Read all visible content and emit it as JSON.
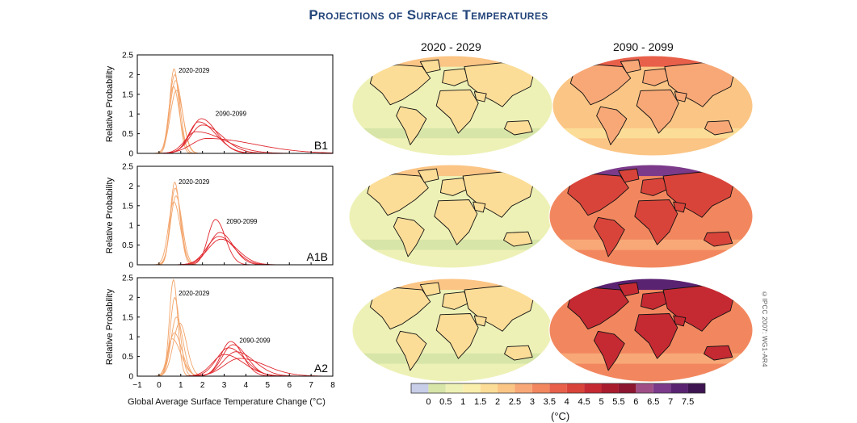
{
  "title": "Projections of Surface Temperatures",
  "col_headers": [
    "2020 - 2029",
    "2090 - 2099"
  ],
  "credit": "©IPCC 2007: WG1-AR4",
  "colorbar": {
    "unit": "(°C)",
    "ticks": [
      "0",
      "0.5",
      "1",
      "1.5",
      "2",
      "2.5",
      "3",
      "3.5",
      "4",
      "4.5",
      "5",
      "5.5",
      "6",
      "6.5",
      "7",
      "7.5"
    ],
    "colors": [
      "#c8cde8",
      "#d7e5a8",
      "#eef1b6",
      "#f9eeac",
      "#fcdd97",
      "#fbc585",
      "#f8a877",
      "#f2875f",
      "#e8604a",
      "#d9443a",
      "#c52a32",
      "#a91c2e",
      "#8c1530",
      "#a04f86",
      "#7c3a8a",
      "#5a2372",
      "#3e1450"
    ]
  },
  "chart_data": [
    {
      "type": "line",
      "scenario_label": "B1",
      "ylabel": "Relative Probability",
      "yticks": [
        "0",
        "0.5",
        "1",
        "1.5",
        "2",
        "2.5"
      ],
      "ylim": [
        0,
        2.5
      ],
      "xlim": [
        -1,
        8
      ],
      "period_labels": [
        {
          "text": "2020-2029",
          "x": 0.9,
          "y": 2.05
        },
        {
          "text": "2090-2099",
          "x": 2.6,
          "y": 0.95
        }
      ],
      "series": [
        {
          "group": "2020-2029",
          "peak": 0.69,
          "height": 2.15,
          "sl": 0.2,
          "sr": 0.22
        },
        {
          "group": "2020-2029",
          "peak": 0.72,
          "height": 2.0,
          "sl": 0.24,
          "sr": 0.25
        },
        {
          "group": "2020-2029",
          "peak": 0.76,
          "height": 1.85,
          "sl": 0.26,
          "sr": 0.3
        },
        {
          "group": "2020-2029",
          "peak": 0.66,
          "height": 1.7,
          "sl": 0.22,
          "sr": 0.28
        },
        {
          "group": "2020-2029",
          "peak": 0.8,
          "height": 1.6,
          "sl": 0.28,
          "sr": 0.3
        },
        {
          "group": "2090-2099",
          "peak": 1.95,
          "height": 0.88,
          "sl": 0.5,
          "sr": 0.7
        },
        {
          "group": "2090-2099",
          "peak": 1.82,
          "height": 0.8,
          "sl": 0.45,
          "sr": 0.8
        },
        {
          "group": "2090-2099",
          "peak": 2.0,
          "height": 0.72,
          "sl": 0.55,
          "sr": 0.9
        },
        {
          "group": "2090-2099",
          "peak": 1.7,
          "height": 0.55,
          "sl": 0.5,
          "sr": 1.3
        },
        {
          "group": "2090-2099",
          "peak": 2.2,
          "height": 0.38,
          "sl": 0.7,
          "sr": 2.2
        }
      ]
    },
    {
      "type": "line",
      "scenario_label": "A1B",
      "ylabel": "Relative Probability",
      "yticks": [
        "0",
        "0.5",
        "1",
        "1.5",
        "2",
        "2.5"
      ],
      "ylim": [
        0,
        2.5
      ],
      "xlim": [
        -1,
        8
      ],
      "period_labels": [
        {
          "text": "2020-2029",
          "x": 0.9,
          "y": 2.05
        },
        {
          "text": "2090-2099",
          "x": 3.1,
          "y": 1.05
        }
      ],
      "series": [
        {
          "group": "2020-2029",
          "peak": 0.72,
          "height": 2.1,
          "sl": 0.2,
          "sr": 0.24
        },
        {
          "group": "2020-2029",
          "peak": 0.74,
          "height": 1.95,
          "sl": 0.22,
          "sr": 0.26
        },
        {
          "group": "2020-2029",
          "peak": 0.68,
          "height": 1.6,
          "sl": 0.25,
          "sr": 0.3
        },
        {
          "group": "2020-2029",
          "peak": 0.78,
          "height": 1.75,
          "sl": 0.25,
          "sr": 0.28
        },
        {
          "group": "2090-2099",
          "peak": 2.6,
          "height": 1.15,
          "sl": 0.35,
          "sr": 0.45
        },
        {
          "group": "2090-2099",
          "peak": 2.8,
          "height": 0.82,
          "sl": 0.5,
          "sr": 0.6
        },
        {
          "group": "2090-2099",
          "peak": 2.75,
          "height": 0.72,
          "sl": 0.55,
          "sr": 0.7
        },
        {
          "group": "2090-2099",
          "peak": 2.85,
          "height": 0.65,
          "sl": 0.6,
          "sr": 0.75
        }
      ]
    },
    {
      "type": "line",
      "scenario_label": "A2",
      "ylabel": "Relative Probability",
      "yticks": [
        "0",
        "0.5",
        "1",
        "1.5",
        "2",
        "2.5"
      ],
      "ylim": [
        0,
        2.5
      ],
      "xlim": [
        -1,
        8
      ],
      "xticks": [
        "−1",
        "0",
        "1",
        "2",
        "3",
        "4",
        "5",
        "6",
        "7",
        "8"
      ],
      "xlabel": "Global Average Surface Temperature Change (°C)",
      "period_labels": [
        {
          "text": "2020-2029",
          "x": 0.9,
          "y": 2.05
        },
        {
          "text": "2090-2099",
          "x": 3.7,
          "y": 0.85
        }
      ],
      "series": [
        {
          "group": "2020-2029",
          "peak": 0.66,
          "height": 2.45,
          "sl": 0.18,
          "sr": 0.2
        },
        {
          "group": "2020-2029",
          "peak": 0.72,
          "height": 2.0,
          "sl": 0.2,
          "sr": 0.24
        },
        {
          "group": "2020-2029",
          "peak": 0.8,
          "height": 1.5,
          "sl": 0.25,
          "sr": 0.3
        },
        {
          "group": "2020-2029",
          "peak": 0.95,
          "height": 1.35,
          "sl": 0.3,
          "sr": 0.32
        },
        {
          "group": "2020-2029",
          "peak": 0.7,
          "height": 1.1,
          "sl": 0.25,
          "sr": 0.35
        },
        {
          "group": "2020-2029",
          "peak": 0.6,
          "height": 0.95,
          "sl": 0.22,
          "sr": 0.4
        },
        {
          "group": "2090-2099",
          "peak": 3.3,
          "height": 0.88,
          "sl": 0.45,
          "sr": 0.55
        },
        {
          "group": "2090-2099",
          "peak": 3.4,
          "height": 0.8,
          "sl": 0.5,
          "sr": 0.65
        },
        {
          "group": "2090-2099",
          "peak": 3.2,
          "height": 0.72,
          "sl": 0.55,
          "sr": 0.75
        },
        {
          "group": "2090-2099",
          "peak": 3.55,
          "height": 0.62,
          "sl": 0.6,
          "sr": 0.85
        },
        {
          "group": "2090-2099",
          "peak": 3.0,
          "height": 0.55,
          "sl": 0.55,
          "sr": 0.9
        },
        {
          "group": "2090-2099",
          "peak": 3.7,
          "height": 0.45,
          "sl": 0.7,
          "sr": 1.2
        }
      ]
    }
  ],
  "maps": [
    {
      "scenario": "B1",
      "period": "2020 - 2029",
      "base_value": 0.75,
      "land_value": 1.5,
      "arctic_value": 2.0
    },
    {
      "scenario": "B1",
      "period": "2090 - 2099",
      "base_value": 2.0,
      "land_value": 2.75,
      "arctic_value": 3.5
    },
    {
      "scenario": "A1B",
      "period": "2020 - 2029",
      "base_value": 0.75,
      "land_value": 1.75,
      "arctic_value": 2.25
    },
    {
      "scenario": "A1B",
      "period": "2090 - 2099",
      "base_value": 3.0,
      "land_value": 4.25,
      "arctic_value": 6.5
    },
    {
      "scenario": "A2",
      "period": "2020 - 2029",
      "base_value": 0.75,
      "land_value": 1.5,
      "arctic_value": 2.0
    },
    {
      "scenario": "A2",
      "period": "2090 - 2099",
      "base_value": 3.25,
      "land_value": 4.75,
      "arctic_value": 7.0
    }
  ],
  "colors": {
    "orange_lines": "#f3a46a",
    "red_lines": "#e0282e",
    "coast": "#111111",
    "title_blue": "#23457a"
  }
}
